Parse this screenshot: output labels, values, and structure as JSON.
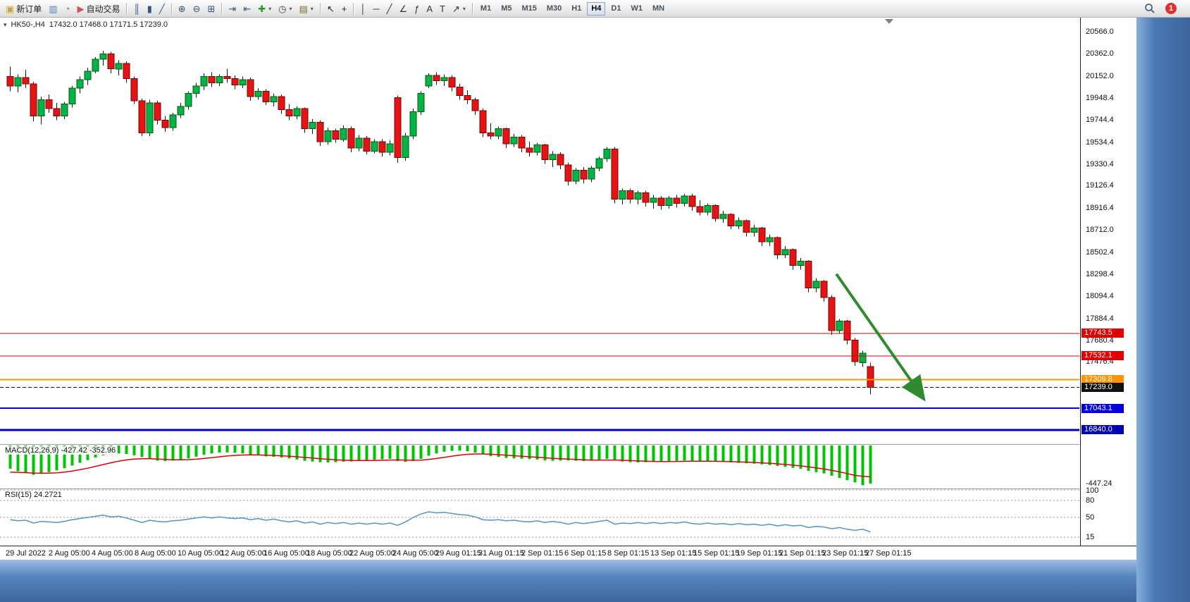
{
  "toolbar": {
    "notification_count": "1",
    "groups": [
      {
        "name": "trade",
        "items": [
          {
            "name": "new-order-button",
            "icon": "new-order-icon",
            "glyph": "▣",
            "glyph_color": "#caa53d",
            "label": "新订单"
          },
          {
            "name": "market-watch-button",
            "icon": "market-watch-icon",
            "glyph": "▥",
            "glyph_color": "#4f81bd"
          },
          {
            "name": "data-window-button",
            "icon": "data-window-icon",
            "glyph": "◔",
            "glyph_color": "#808080"
          },
          {
            "name": "auto-trading-button",
            "icon": "auto-trading-icon",
            "glyph": "▶",
            "glyph_color": "#cc5555",
            "label": "自动交易"
          }
        ]
      },
      {
        "name": "chart-type",
        "items": [
          {
            "name": "bar-chart-button",
            "icon": "bar-chart-icon",
            "glyph": "║",
            "glyph_color": "#31557f"
          },
          {
            "name": "candlestick-chart-button",
            "icon": "candlestick-chart-icon",
            "glyph": "▮",
            "glyph_color": "#31557f"
          },
          {
            "name": "line-chart-button",
            "icon": "line-chart-icon",
            "glyph": "╱",
            "glyph_color": "#31557f"
          }
        ]
      },
      {
        "name": "zoom",
        "items": [
          {
            "name": "zoom-in-button",
            "icon": "zoom-in-icon",
            "glyph": "⊕",
            "glyph_color": "#33537a"
          },
          {
            "name": "zoom-out-button",
            "icon": "zoom-out-icon",
            "glyph": "⊖",
            "glyph_color": "#33537a"
          },
          {
            "name": "tile-windows-button",
            "icon": "tile-windows-icon",
            "glyph": "⊞",
            "glyph_color": "#33537a"
          }
        ]
      },
      {
        "name": "chart-tools",
        "items": [
          {
            "name": "auto-scroll-button",
            "icon": "auto-scroll-icon",
            "glyph": "⇥",
            "glyph_color": "#33537a"
          },
          {
            "name": "chart-shift-button",
            "icon": "chart-shift-icon",
            "glyph": "⇤",
            "glyph_color": "#33537a"
          },
          {
            "name": "indicators-button",
            "icon": "indicators-plus-icon",
            "glyph": "✚",
            "glyph_color": "#1e9e1e",
            "dropdown": true
          },
          {
            "name": "periods-button",
            "icon": "clock-icon",
            "glyph": "◷",
            "glyph_color": "#444444",
            "dropdown": true
          },
          {
            "name": "templates-button",
            "icon": "template-icon",
            "glyph": "▤",
            "glyph_color": "#7a6a2f",
            "dropdown": true
          }
        ]
      },
      {
        "name": "cursor",
        "items": [
          {
            "name": "cursor-button",
            "icon": "cursor-arrow-icon",
            "glyph": "↖",
            "glyph_color": "#222222"
          },
          {
            "name": "crosshair-button",
            "icon": "crosshair-icon",
            "glyph": "+",
            "glyph_color": "#222222"
          }
        ]
      },
      {
        "name": "line-studies",
        "items": [
          {
            "name": "vertical-line-button",
            "icon": "vertical-line-icon",
            "glyph": "│",
            "glyph_color": "#333333"
          },
          {
            "name": "horizontal-line-button",
            "icon": "horizontal-line-icon",
            "glyph": "─",
            "glyph_color": "#333333"
          },
          {
            "name": "trendline-button",
            "icon": "trendline-icon",
            "glyph": "╱",
            "glyph_color": "#333333"
          },
          {
            "name": "equidistant-channel-button",
            "icon": "channel-icon",
            "glyph": "∠",
            "glyph_color": "#333333"
          },
          {
            "name": "fibonacci-button",
            "icon": "fibonacci-icon",
            "glyph": "ƒ",
            "glyph_color": "#333333"
          },
          {
            "name": "text-button",
            "icon": "text-icon",
            "glyph": "A",
            "glyph_color": "#333333"
          },
          {
            "name": "text-label-button",
            "icon": "text-label-icon",
            "glyph": "T",
            "glyph_color": "#333333"
          },
          {
            "name": "arrows-button",
            "icon": "arrow-objects-icon",
            "glyph": "↗",
            "glyph_color": "#333333",
            "dropdown": true
          }
        ]
      }
    ],
    "timeframes": {
      "items": [
        "M1",
        "M5",
        "M15",
        "M30",
        "H1",
        "H4",
        "D1",
        "W1",
        "MN"
      ],
      "active": "H4"
    }
  },
  "chart": {
    "header": {
      "symbol_period": "HK50-,H4",
      "ohlc": "17432.0 17468.0 17171.5 17239.0"
    },
    "y_axis_labels": [
      "20566.0",
      "20362.0",
      "20152.0",
      "19948.4",
      "19744.4",
      "19534.4",
      "19330.4",
      "19126.4",
      "18916.4",
      "18712.0",
      "18502.4",
      "18298.4",
      "18094.4",
      "17884.4",
      "17680.4",
      "17476.4"
    ],
    "price_lines": [
      {
        "price": 17743.5,
        "label": "17743.5",
        "color": "#e00000",
        "width": 1
      },
      {
        "price": 17532.1,
        "label": "17532.1",
        "color": "#e00000",
        "width": 1
      },
      {
        "price": 17309.8,
        "label": "17309.8",
        "color": "#ff9500",
        "width": 2
      },
      {
        "price": 17043.1,
        "label": "17043.1",
        "color": "#0000e0",
        "width": 2
      },
      {
        "price": 16840.0,
        "label": "16840.0",
        "color": "#0000b8",
        "width": 3
      }
    ],
    "current_price": {
      "price": 17239.0,
      "label": "17239.0"
    },
    "arrow": {
      "from_index": 107,
      "from_price": 18300,
      "to_index": 118,
      "to_price": 17160,
      "color": "#2e8b2e"
    },
    "x_axis_labels": [
      "29 Jul 2022",
      "2 Aug 05:00",
      "4 Aug 05:00",
      "8 Aug 05:00",
      "10 Aug 05:00",
      "12 Aug 05:00",
      "16 Aug 05:00",
      "18 Aug 05:00",
      "22 Aug 05:00",
      "24 Aug 05:00",
      "29 Aug 01:15",
      "31 Aug 01:15",
      "2 Sep 01:15",
      "6 Sep 01:15",
      "8 Sep 01:15",
      "13 Sep 01:15",
      "15 Sep 01:15",
      "19 Sep 01:15",
      "21 Sep 01:15",
      "23 Sep 01:15",
      "27 Sep 01:15"
    ]
  },
  "macd": {
    "label": "MACD(12,26,9) -427.42 -352.96",
    "min_label": "-447.24",
    "histogram_color": "#00c400",
    "signal_color": "#e00000",
    "histogram": [
      -260,
      -290,
      -310,
      -330,
      -320,
      -300,
      -280,
      -255,
      -225,
      -195,
      -165,
      -135,
      -110,
      -95,
      -90,
      -95,
      -110,
      -130,
      -155,
      -170,
      -175,
      -170,
      -160,
      -145,
      -125,
      -105,
      -90,
      -80,
      -78,
      -82,
      -90,
      -100,
      -112,
      -122,
      -128,
      -135,
      -145,
      -158,
      -172,
      -180,
      -188,
      -190,
      -188,
      -182,
      -180,
      -175,
      -168,
      -160,
      -155,
      -150,
      -175,
      -185,
      -175,
      -150,
      -115,
      -90,
      -70,
      -60,
      -58,
      -65,
      -80,
      -100,
      -118,
      -128,
      -140,
      -145,
      -148,
      -152,
      -158,
      -168,
      -172,
      -170,
      -168,
      -172,
      -175,
      -172,
      -165,
      -150,
      -165,
      -180,
      -188,
      -190,
      -188,
      -185,
      -182,
      -178,
      -172,
      -168,
      -170,
      -175,
      -178,
      -180,
      -185,
      -190,
      -195,
      -200,
      -205,
      -212,
      -220,
      -230,
      -240,
      -252,
      -262,
      -285,
      -300,
      -315,
      -340,
      -365,
      -390,
      -415,
      -447.24,
      -427.42
    ],
    "signal": [
      -300,
      -302,
      -305,
      -310,
      -312,
      -312,
      -308,
      -300,
      -288,
      -272,
      -255,
      -235,
      -214,
      -194,
      -176,
      -162,
      -152,
      -148,
      -148,
      -152,
      -156,
      -160,
      -161,
      -159,
      -154,
      -146,
      -137,
      -127,
      -118,
      -111,
      -107,
      -105,
      -106,
      -109,
      -112,
      -116,
      -121,
      -127,
      -134,
      -141,
      -148,
      -155,
      -161,
      -165,
      -168,
      -169,
      -169,
      -168,
      -166,
      -163,
      -162,
      -164,
      -166,
      -164,
      -157,
      -146,
      -133,
      -120,
      -108,
      -99,
      -95,
      -95,
      -98,
      -103,
      -109,
      -115,
      -121,
      -127,
      -132,
      -138,
      -144,
      -149,
      -153,
      -157,
      -161,
      -163,
      -164,
      -163,
      -163,
      -166,
      -170,
      -174,
      -177,
      -179,
      -180,
      -180,
      -179,
      -178,
      -177,
      -177,
      -177,
      -178,
      -179,
      -181,
      -184,
      -187,
      -191,
      -195,
      -200,
      -206,
      -213,
      -221,
      -229,
      -240,
      -252,
      -265,
      -280,
      -297,
      -316,
      -336,
      -346,
      -352.96
    ]
  },
  "rsi": {
    "label": "RSI(15) 24.2721",
    "line_color": "#4f94cd",
    "levels": [
      100,
      80,
      50,
      15
    ],
    "values": [
      46,
      44,
      45,
      40,
      43,
      42,
      41,
      43,
      46,
      48,
      50,
      52,
      54,
      51,
      52,
      49,
      45,
      41,
      45,
      43,
      42,
      44,
      45,
      47,
      49,
      51,
      49,
      51,
      49,
      48,
      49,
      46,
      48,
      45,
      47,
      44,
      42,
      44,
      40,
      42,
      38,
      41,
      39,
      41,
      38,
      40,
      38,
      40,
      38,
      40,
      36,
      42,
      50,
      56,
      60,
      58,
      59,
      57,
      55,
      54,
      51,
      46,
      45,
      46,
      44,
      45,
      43,
      42,
      44,
      41,
      43,
      41,
      38,
      41,
      39,
      41,
      43,
      45,
      38,
      40,
      39,
      41,
      39,
      41,
      39,
      41,
      40,
      42,
      39,
      38,
      40,
      38,
      39,
      37,
      39,
      37,
      38,
      36,
      38,
      35,
      37,
      35,
      36,
      32,
      34,
      33,
      30,
      32,
      29,
      27,
      29,
      24.2721
    ]
  },
  "chart_data": {
    "type": "candlestick",
    "symbol": "HK50-",
    "timeframe": "H4",
    "last_bar": {
      "open": 17432.0,
      "high": 17468.0,
      "low": 17171.5,
      "close": 17239.0
    },
    "up_color": "#00b44a",
    "down_color": "#e41414",
    "y_range": [
      16700,
      20700
    ],
    "candles": [
      [
        20150,
        20240,
        20010,
        20060
      ],
      [
        20060,
        20170,
        20000,
        20140
      ],
      [
        20140,
        20210,
        20040,
        20080
      ],
      [
        20080,
        20100,
        19730,
        19780
      ],
      [
        19780,
        19960,
        19700,
        19930
      ],
      [
        19930,
        19980,
        19810,
        19850
      ],
      [
        19850,
        19900,
        19740,
        19780
      ],
      [
        19780,
        19910,
        19750,
        19890
      ],
      [
        19890,
        20060,
        19860,
        20040
      ],
      [
        20040,
        20150,
        19990,
        20120
      ],
      [
        20120,
        20230,
        20070,
        20200
      ],
      [
        20200,
        20330,
        20180,
        20310
      ],
      [
        20310,
        20390,
        20250,
        20360
      ],
      [
        20360,
        20380,
        20180,
        20220
      ],
      [
        20220,
        20300,
        20160,
        20270
      ],
      [
        20270,
        20290,
        20090,
        20130
      ],
      [
        20130,
        20150,
        19890,
        19920
      ],
      [
        19920,
        19940,
        19590,
        19620
      ],
      [
        19620,
        19930,
        19590,
        19900
      ],
      [
        19900,
        19920,
        19700,
        19740
      ],
      [
        19740,
        19780,
        19630,
        19670
      ],
      [
        19670,
        19810,
        19640,
        19790
      ],
      [
        19790,
        19900,
        19760,
        19870
      ],
      [
        19870,
        20010,
        19840,
        19990
      ],
      [
        19990,
        20090,
        19950,
        20060
      ],
      [
        20060,
        20180,
        20020,
        20150
      ],
      [
        20150,
        20190,
        20050,
        20090
      ],
      [
        20090,
        20170,
        20060,
        20150
      ],
      [
        20150,
        20220,
        20090,
        20130
      ],
      [
        20130,
        20160,
        20030,
        20070
      ],
      [
        20070,
        20150,
        20040,
        20120
      ],
      [
        20120,
        20140,
        19920,
        19960
      ],
      [
        19960,
        20040,
        19930,
        20010
      ],
      [
        20010,
        20030,
        19880,
        19910
      ],
      [
        19910,
        19990,
        19870,
        19960
      ],
      [
        19960,
        19980,
        19800,
        19840
      ],
      [
        19840,
        19890,
        19740,
        19780
      ],
      [
        19780,
        19870,
        19750,
        19850
      ],
      [
        19850,
        19860,
        19620,
        19660
      ],
      [
        19660,
        19750,
        19610,
        19720
      ],
      [
        19720,
        19740,
        19500,
        19540
      ],
      [
        19540,
        19670,
        19510,
        19640
      ],
      [
        19640,
        19660,
        19530,
        19560
      ],
      [
        19560,
        19690,
        19540,
        19660
      ],
      [
        19660,
        19680,
        19440,
        19480
      ],
      [
        19480,
        19600,
        19450,
        19570
      ],
      [
        19570,
        19590,
        19420,
        19450
      ],
      [
        19450,
        19560,
        19430,
        19540
      ],
      [
        19540,
        19560,
        19400,
        19440
      ],
      [
        19440,
        19550,
        19410,
        19520
      ],
      [
        19950,
        19970,
        19340,
        19390
      ],
      [
        19390,
        19620,
        19360,
        19590
      ],
      [
        19590,
        19850,
        19560,
        19820
      ],
      [
        19820,
        20010,
        19790,
        19990
      ],
      [
        20060,
        20180,
        20040,
        20160
      ],
      [
        20160,
        20190,
        20070,
        20110
      ],
      [
        20110,
        20170,
        20060,
        20140
      ],
      [
        20140,
        20160,
        20010,
        20050
      ],
      [
        20050,
        20080,
        19930,
        19970
      ],
      [
        19970,
        20020,
        19890,
        19930
      ],
      [
        19930,
        19950,
        19790,
        19830
      ],
      [
        19830,
        19850,
        19580,
        19620
      ],
      [
        19620,
        19710,
        19560,
        19590
      ],
      [
        19590,
        19680,
        19560,
        19660
      ],
      [
        19660,
        19670,
        19480,
        19520
      ],
      [
        19520,
        19610,
        19490,
        19580
      ],
      [
        19580,
        19600,
        19440,
        19480
      ],
      [
        19480,
        19540,
        19400,
        19440
      ],
      [
        19440,
        19530,
        19410,
        19510
      ],
      [
        19510,
        19520,
        19330,
        19370
      ],
      [
        19370,
        19450,
        19300,
        19420
      ],
      [
        19420,
        19440,
        19280,
        19320
      ],
      [
        19320,
        19340,
        19130,
        19170
      ],
      [
        19170,
        19290,
        19140,
        19270
      ],
      [
        19270,
        19300,
        19150,
        19190
      ],
      [
        19190,
        19310,
        19160,
        19290
      ],
      [
        19290,
        19400,
        19260,
        19380
      ],
      [
        19380,
        19490,
        19350,
        19470
      ],
      [
        19470,
        19490,
        18960,
        19000
      ],
      [
        19000,
        19100,
        18950,
        19080
      ],
      [
        19080,
        19100,
        18960,
        19000
      ],
      [
        19000,
        19080,
        18950,
        19060
      ],
      [
        19060,
        19080,
        18930,
        18970
      ],
      [
        18970,
        19040,
        18910,
        19010
      ],
      [
        19010,
        19030,
        18900,
        18940
      ],
      [
        18940,
        19030,
        18910,
        19010
      ],
      [
        19010,
        19040,
        18920,
        18960
      ],
      [
        18960,
        19050,
        18930,
        19030
      ],
      [
        19030,
        19050,
        18890,
        18930
      ],
      [
        18930,
        18990,
        18850,
        18880
      ],
      [
        18880,
        18960,
        18850,
        18940
      ],
      [
        18940,
        18950,
        18790,
        18820
      ],
      [
        18820,
        18890,
        18780,
        18860
      ],
      [
        18860,
        18870,
        18720,
        18750
      ],
      [
        18750,
        18830,
        18720,
        18800
      ],
      [
        18800,
        18810,
        18650,
        18690
      ],
      [
        18690,
        18760,
        18650,
        18730
      ],
      [
        18730,
        18740,
        18560,
        18600
      ],
      [
        18600,
        18670,
        18560,
        18640
      ],
      [
        18640,
        18650,
        18440,
        18480
      ],
      [
        18480,
        18560,
        18450,
        18530
      ],
      [
        18530,
        18540,
        18340,
        18380
      ],
      [
        18380,
        18450,
        18340,
        18420
      ],
      [
        18420,
        18430,
        18130,
        18170
      ],
      [
        18170,
        18260,
        18130,
        18230
      ],
      [
        18230,
        18240,
        18040,
        18080
      ],
      [
        18080,
        18100,
        17730,
        17770
      ],
      [
        17770,
        17880,
        17740,
        17860
      ],
      [
        17860,
        17870,
        17640,
        17680
      ],
      [
        17680,
        17700,
        17440,
        17480
      ],
      [
        17470,
        17580,
        17430,
        17560
      ],
      [
        17432,
        17468,
        17171.5,
        17239
      ]
    ]
  }
}
